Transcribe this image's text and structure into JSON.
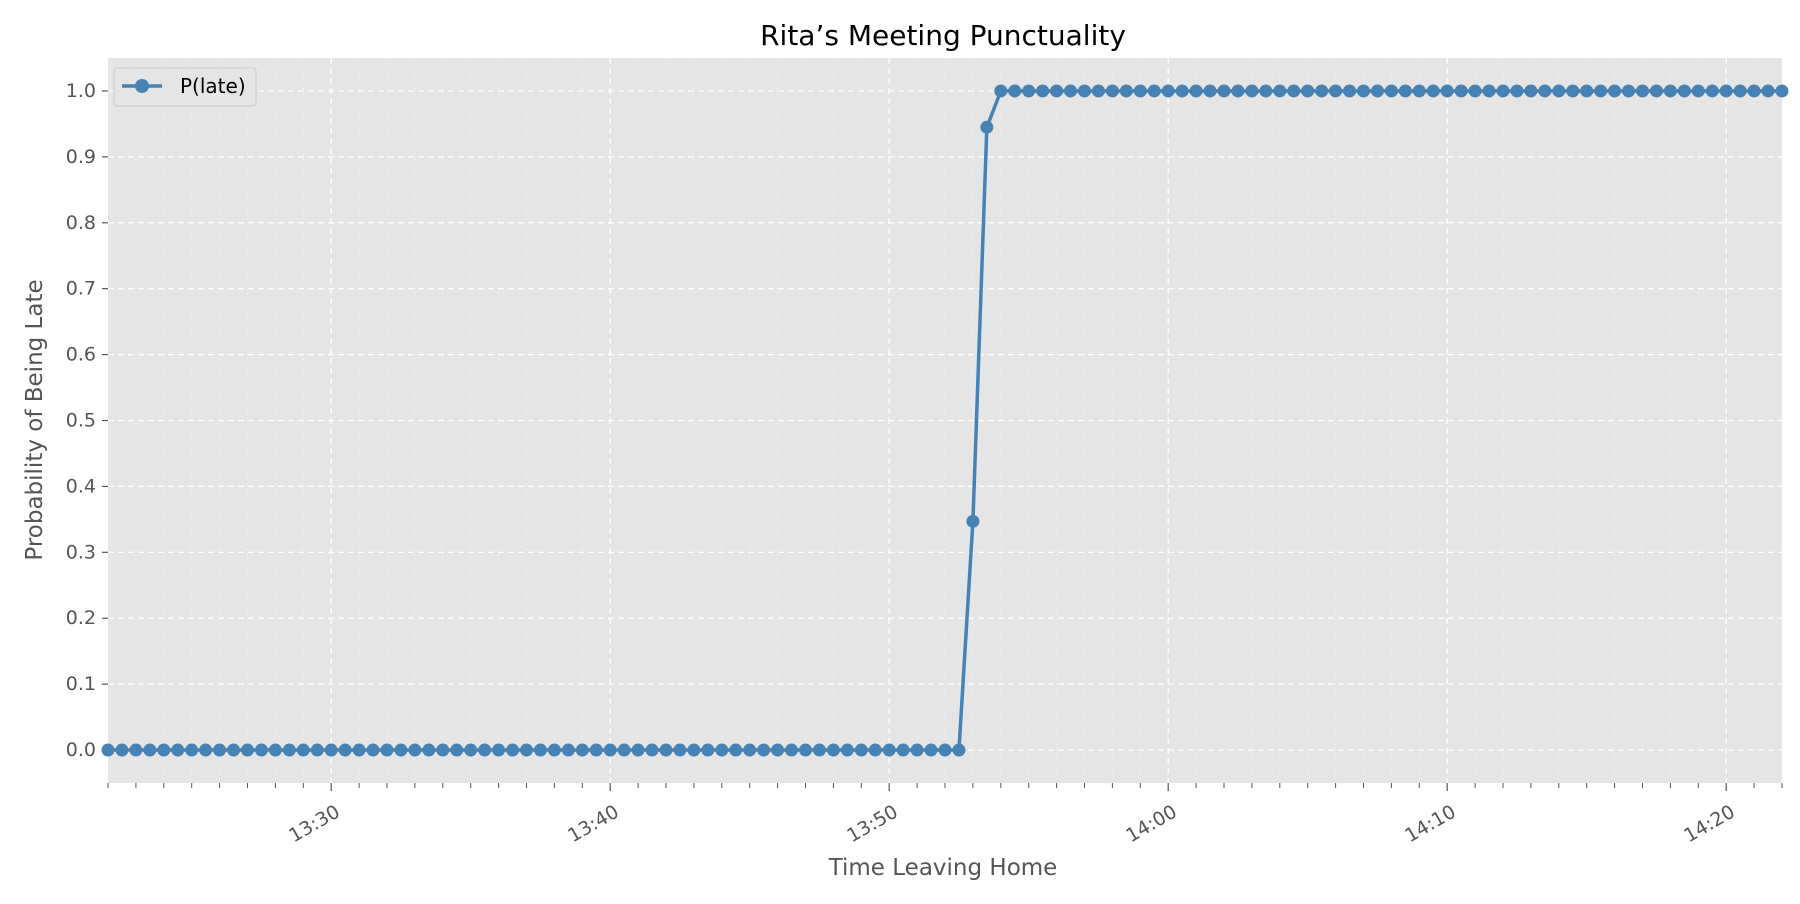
{
  "chart_data": {
    "type": "line",
    "title": "Rita’s Meeting Punctuality",
    "xlabel": "Time Leaving Home",
    "ylabel": "Probability of Being Late",
    "x_tick_labels": [
      "13:30",
      "13:40",
      "13:50",
      "14:00",
      "14:10",
      "14:20"
    ],
    "y_tick_labels": [
      "0.0",
      "0.1",
      "0.2",
      "0.3",
      "0.4",
      "0.5",
      "0.6",
      "0.7",
      "0.8",
      "0.9",
      "1.0"
    ],
    "xlim": [
      "13:22",
      "14:22"
    ],
    "ylim": [
      -0.05,
      1.05
    ],
    "grid": true,
    "legend_position": "top-left",
    "colors": {
      "series": "#4682b4",
      "plot_background": "#e5e5e5",
      "grid": "#ffffff"
    },
    "series": [
      {
        "name": "P(late)",
        "x": [
          "13:22:00",
          "13:22:30",
          "13:23:00",
          "13:23:30",
          "13:24:00",
          "13:24:30",
          "13:25:00",
          "13:25:30",
          "13:26:00",
          "13:26:30",
          "13:27:00",
          "13:27:30",
          "13:28:00",
          "13:28:30",
          "13:29:00",
          "13:29:30",
          "13:30:00",
          "13:30:30",
          "13:31:00",
          "13:31:30",
          "13:32:00",
          "13:32:30",
          "13:33:00",
          "13:33:30",
          "13:34:00",
          "13:34:30",
          "13:35:00",
          "13:35:30",
          "13:36:00",
          "13:36:30",
          "13:37:00",
          "13:37:30",
          "13:38:00",
          "13:38:30",
          "13:39:00",
          "13:39:30",
          "13:40:00",
          "13:40:30",
          "13:41:00",
          "13:41:30",
          "13:42:00",
          "13:42:30",
          "13:43:00",
          "13:43:30",
          "13:44:00",
          "13:44:30",
          "13:45:00",
          "13:45:30",
          "13:46:00",
          "13:46:30",
          "13:47:00",
          "13:47:30",
          "13:48:00",
          "13:48:30",
          "13:49:00",
          "13:49:30",
          "13:50:00",
          "13:50:30",
          "13:51:00",
          "13:51:30",
          "13:52:00",
          "13:52:30",
          "13:53:00",
          "13:53:30",
          "13:54:00",
          "13:54:30",
          "13:55:00",
          "13:55:30",
          "13:56:00",
          "13:56:30",
          "13:57:00",
          "13:57:30",
          "13:58:00",
          "13:58:30",
          "13:59:00",
          "13:59:30",
          "14:00:00",
          "14:00:30",
          "14:01:00",
          "14:01:30",
          "14:02:00",
          "14:02:30",
          "14:03:00",
          "14:03:30",
          "14:04:00",
          "14:04:30",
          "14:05:00",
          "14:05:30",
          "14:06:00",
          "14:06:30",
          "14:07:00",
          "14:07:30",
          "14:08:00",
          "14:08:30",
          "14:09:00",
          "14:09:30",
          "14:10:00",
          "14:10:30",
          "14:11:00",
          "14:11:30",
          "14:12:00",
          "14:12:30",
          "14:13:00",
          "14:13:30",
          "14:14:00",
          "14:14:30",
          "14:15:00",
          "14:15:30",
          "14:16:00",
          "14:16:30",
          "14:17:00",
          "14:17:30",
          "14:18:00",
          "14:18:30",
          "14:19:00",
          "14:19:30",
          "14:20:00",
          "14:20:30",
          "14:21:00",
          "14:21:30",
          "14:22:00"
        ],
        "values": [
          0,
          0,
          0,
          0,
          0,
          0,
          0,
          0,
          0,
          0,
          0,
          0,
          0,
          0,
          0,
          0,
          0,
          0,
          0,
          0,
          0,
          0,
          0,
          0,
          0,
          0,
          0,
          0,
          0,
          0,
          0,
          0,
          0,
          0,
          0,
          0,
          0,
          0,
          0,
          0,
          0,
          0,
          0,
          0,
          0,
          0,
          0,
          0,
          0,
          0,
          0,
          0,
          0,
          0,
          0,
          0,
          0,
          0,
          0,
          0,
          0,
          0,
          0.347,
          0.945,
          1,
          1,
          1,
          1,
          1,
          1,
          1,
          1,
          1,
          1,
          1,
          1,
          1,
          1,
          1,
          1,
          1,
          1,
          1,
          1,
          1,
          1,
          1,
          1,
          1,
          1,
          1,
          1,
          1,
          1,
          1,
          1,
          1,
          1,
          1,
          1,
          1,
          1,
          1,
          1,
          1,
          1,
          1,
          1,
          1,
          1,
          1,
          1,
          1,
          1,
          1,
          1,
          1,
          1,
          1,
          1,
          1
        ]
      }
    ]
  }
}
